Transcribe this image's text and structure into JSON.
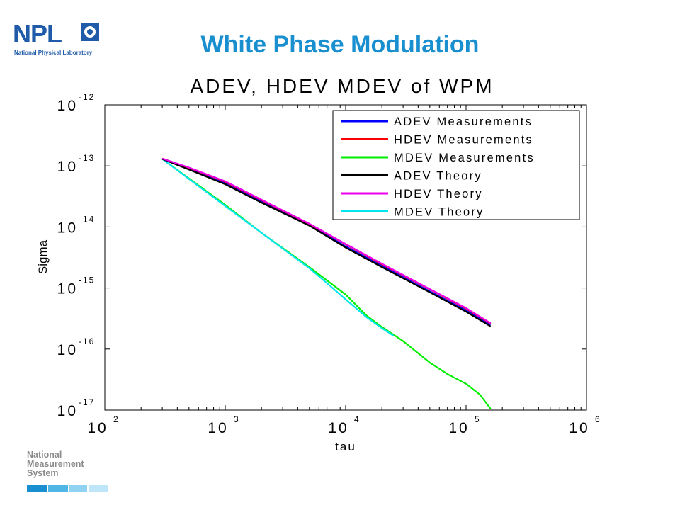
{
  "slide": {
    "title": "White Phase Modulation",
    "logo_word": "NPL",
    "logo_subtitle": "National Physical Laboratory",
    "footer_lines": [
      "National",
      "Measurement",
      "System"
    ],
    "footer_bar_colors": [
      "#1a8fd0",
      "#4fb6e6",
      "#8fd2f2",
      "#bfe6f8"
    ]
  },
  "chart_data": {
    "type": "line",
    "title": "ADEV, HDEV MDEV of WPM",
    "xlabel": "tau",
    "ylabel": "Sigma",
    "xscale": "log",
    "yscale": "log",
    "xlim": [
      100,
      1000000
    ],
    "ylim": [
      1e-17,
      1e-12
    ],
    "x_ticks": [
      {
        "base": "10",
        "exp": "2"
      },
      {
        "base": "10",
        "exp": "3"
      },
      {
        "base": "10",
        "exp": "4"
      },
      {
        "base": "10",
        "exp": "5"
      },
      {
        "base": "10",
        "exp": "6"
      }
    ],
    "y_ticks": [
      {
        "base": "10",
        "exp": "-17"
      },
      {
        "base": "10",
        "exp": "-16"
      },
      {
        "base": "10",
        "exp": "-15"
      },
      {
        "base": "10",
        "exp": "-14"
      },
      {
        "base": "10",
        "exp": "-13"
      },
      {
        "base": "10",
        "exp": "-12"
      }
    ],
    "grid": false,
    "legend_position": "top-right",
    "series": [
      {
        "name": "ADEV Measurements",
        "color": "#0000ff",
        "points": [
          [
            300,
            1.3e-13
          ],
          [
            500,
            9e-14
          ],
          [
            1000,
            5.2e-14
          ],
          [
            2000,
            2.6e-14
          ],
          [
            5000,
            1.08e-14
          ],
          [
            10000,
            4.8e-15
          ],
          [
            20000,
            2.3e-15
          ],
          [
            50000,
            8.8e-16
          ],
          [
            100000,
            4.3e-16
          ],
          [
            160000,
            2.5e-16
          ]
        ]
      },
      {
        "name": "HDEV Measurements",
        "color": "#ff0000",
        "points": [
          [
            300,
            1.32e-13
          ],
          [
            500,
            9.3e-14
          ],
          [
            1000,
            5.5e-14
          ],
          [
            2000,
            2.75e-14
          ],
          [
            5000,
            1.12e-14
          ],
          [
            10000,
            5.2e-15
          ],
          [
            20000,
            2.45e-15
          ],
          [
            50000,
            9.5e-16
          ],
          [
            100000,
            4.6e-16
          ],
          [
            160000,
            2.6e-16
          ]
        ]
      },
      {
        "name": "MDEV Measurements",
        "color": "#00ee00",
        "points": [
          [
            300,
            1.3e-13
          ],
          [
            1000,
            2.3e-14
          ],
          [
            2000,
            8e-15
          ],
          [
            5000,
            2.2e-15
          ],
          [
            10000,
            7.8e-16
          ],
          [
            15000,
            3.5e-16
          ],
          [
            20000,
            2.3e-16
          ],
          [
            30000,
            1.35e-16
          ],
          [
            50000,
            6e-17
          ],
          [
            70000,
            3.9e-17
          ],
          [
            100000,
            2.7e-17
          ],
          [
            130000,
            1.8e-17
          ],
          [
            160000,
            1.05e-17
          ]
        ]
      },
      {
        "name": "ADEV Theory",
        "color": "#000000",
        "points": [
          [
            300,
            1.3e-13
          ],
          [
            500,
            8.7e-14
          ],
          [
            1000,
            5e-14
          ],
          [
            2000,
            2.5e-14
          ],
          [
            5000,
            1.05e-14
          ],
          [
            10000,
            4.6e-15
          ],
          [
            20000,
            2.2e-15
          ],
          [
            50000,
            8.5e-16
          ],
          [
            100000,
            4.1e-16
          ],
          [
            160000,
            2.35e-16
          ]
        ]
      },
      {
        "name": "HDEV Theory",
        "color": "#ee00ee",
        "points": [
          [
            300,
            1.32e-13
          ],
          [
            500,
            9.4e-14
          ],
          [
            1000,
            5.6e-14
          ],
          [
            2000,
            2.8e-14
          ],
          [
            5000,
            1.13e-14
          ],
          [
            10000,
            5.25e-15
          ],
          [
            20000,
            2.5e-15
          ],
          [
            50000,
            9.6e-16
          ],
          [
            100000,
            4.7e-16
          ],
          [
            160000,
            2.65e-16
          ]
        ]
      },
      {
        "name": "MDEV Theory",
        "color": "#00e5ee",
        "points": [
          [
            300,
            1.3e-13
          ],
          [
            1000,
            2.2e-14
          ],
          [
            2000,
            8e-15
          ],
          [
            5000,
            2.1e-15
          ],
          [
            7000,
            1.2e-15
          ],
          [
            10000,
            6.5e-16
          ],
          [
            15000,
            3.3e-16
          ],
          [
            20000,
            2.2e-16
          ],
          [
            25000,
            1.65e-16
          ]
        ]
      }
    ]
  }
}
